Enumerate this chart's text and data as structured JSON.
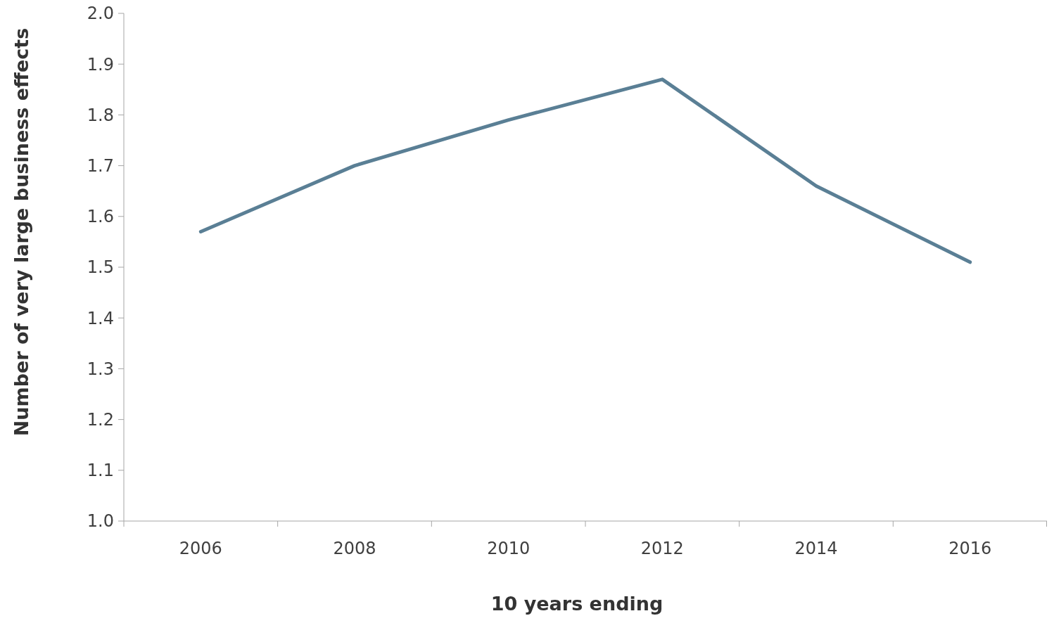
{
  "chart_data": {
    "type": "line",
    "xlabel": "10 years ending",
    "ylabel": "Number of very large business effects",
    "categories": [
      "2006",
      "2008",
      "2010",
      "2012",
      "2014",
      "2016"
    ],
    "series": [
      {
        "color": "#5a7f95",
        "values": [
          1.57,
          1.7,
          1.79,
          1.87,
          1.66,
          1.51
        ]
      }
    ],
    "ylim": [
      1.0,
      2.0
    ],
    "yticks": [
      {
        "value": 1.0,
        "label": "1.0"
      },
      1.1,
      1.2,
      1.3,
      1.4,
      1.5,
      1.6,
      1.7,
      1.8,
      1.9,
      {
        "value": 2.0,
        "label": "2.0"
      }
    ],
    "grid": false,
    "marker": "none",
    "line_style": "solid"
  }
}
